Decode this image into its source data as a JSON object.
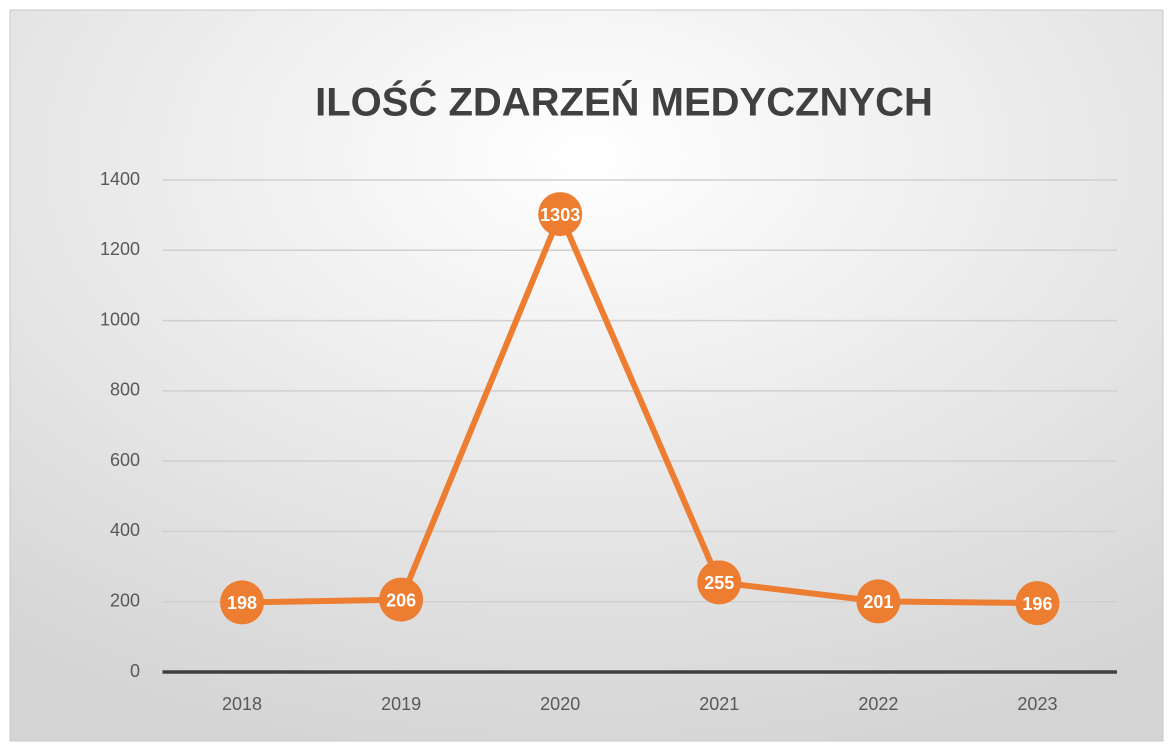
{
  "chart_data": {
    "type": "line",
    "title": "ILOŚĆ ZDARZEŃ MEDYCZNYCH",
    "categories": [
      "2018",
      "2019",
      "2020",
      "2021",
      "2022",
      "2023"
    ],
    "values": [
      198,
      206,
      1303,
      255,
      201,
      196
    ],
    "color": "#ED7D31",
    "ylim": [
      0,
      1400
    ],
    "yticks": [
      0,
      200,
      400,
      600,
      800,
      1000,
      1200,
      1400
    ],
    "grid": true
  }
}
